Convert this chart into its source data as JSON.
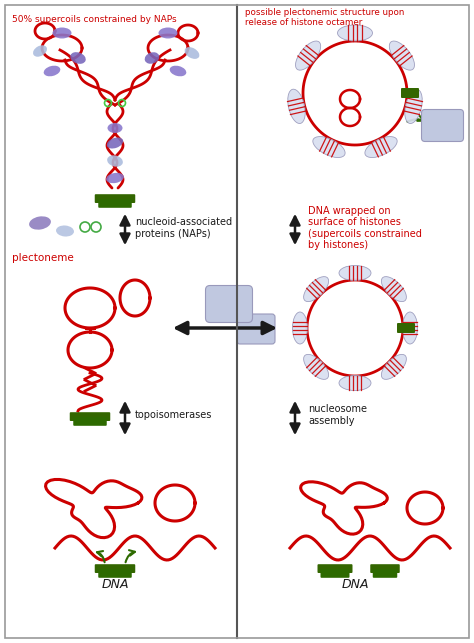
{
  "fig_width": 4.74,
  "fig_height": 6.43,
  "dpi": 100,
  "bg": "#ffffff",
  "red": "#cc0000",
  "green_dark": "#2d6a00",
  "green_mid": "#336600",
  "black": "#1a1a1a",
  "text_red": "#cc0000",
  "nap_purple": "#7a6fba",
  "nap_blue": "#8aabcc",
  "nap_light": "#a0b8d8",
  "hist_fill": "#d8dff0",
  "hist_edge": "#9999bb",
  "histone_center": "#c8d0e8",
  "gray_blob": "#c0c8e0",
  "divider": "#555555",
  "border": "#999999",
  "lw_dna": 2.0,
  "lw_border": 1.2,
  "labels": {
    "top_left": "50% supercoils constrained by NAPs",
    "top_right": "possible plectonemic structure upon\nrelease of histone octamer",
    "plectoneme": "plectoneme",
    "nap_arrow": "nucleoid-associated\nproteins (NAPs)",
    "dna_hist": "DNA wrapped on\nsurface of histones\n(supercoils constrained\nby histones)",
    "topoisomerase": "topoisomerases",
    "nucleosome": "nucleosome\nassembly",
    "dna_left": "DNA",
    "dna_right": "DNA"
  }
}
